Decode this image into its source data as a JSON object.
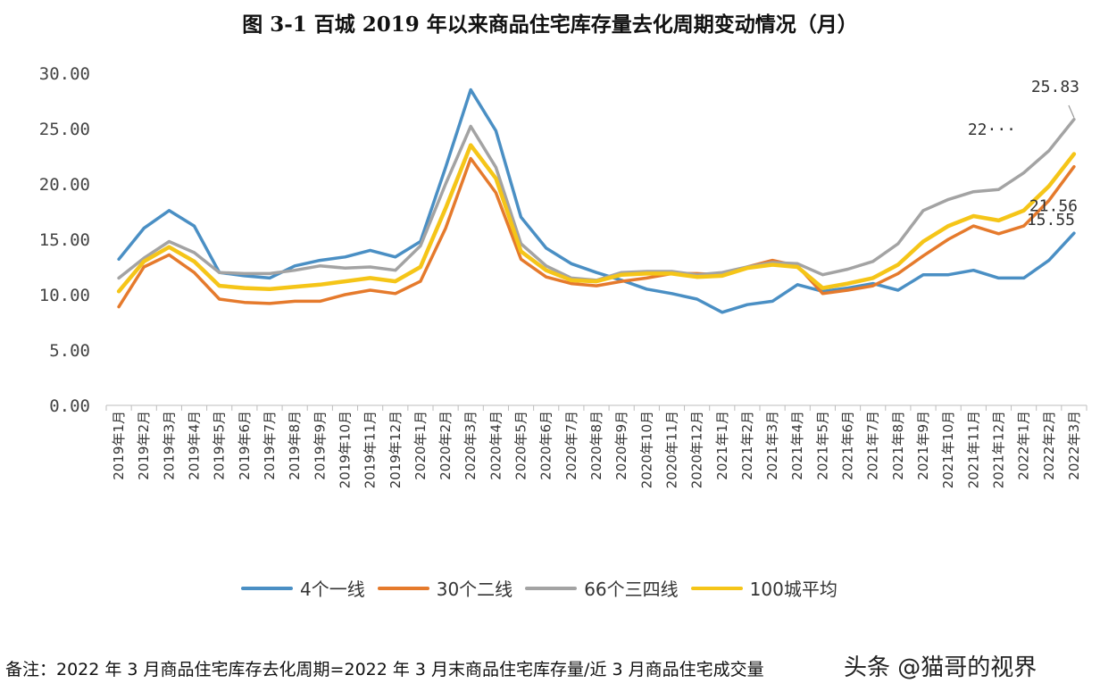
{
  "chart_data": {
    "type": "line",
    "title": "图 3-1  百城 2019 年以来商品住宅库存量去化周期变动情况（月）",
    "ylim": [
      0,
      30
    ],
    "yticks": [
      "0.00",
      "5.00",
      "10.00",
      "15.00",
      "20.00",
      "25.00",
      "30.00"
    ],
    "ytick_values": [
      0,
      5,
      10,
      15,
      20,
      25,
      30
    ],
    "grid": false,
    "legend_position": "bottom",
    "categories": [
      "2019年1月",
      "2019年2月",
      "2019年3月",
      "2019年4月",
      "2019年5月",
      "2019年6月",
      "2019年7月",
      "2019年8月",
      "2019年9月",
      "2019年10月",
      "2019年11月",
      "2019年12月",
      "2020年1月",
      "2020年2月",
      "2020年3月",
      "2020年4月",
      "2020年5月",
      "2020年6月",
      "2020年7月",
      "2020年8月",
      "2020年9月",
      "2020年10月",
      "2020年11月",
      "2020年12月",
      "2021年1月",
      "2021年2月",
      "2021年3月",
      "2021年4月",
      "2021年5月",
      "2021年6月",
      "2021年7月",
      "2021年8月",
      "2021年9月",
      "2021年10月",
      "2021年11月",
      "2021年12月",
      "2022年1月",
      "2022年2月",
      "2022年3月"
    ],
    "series": [
      {
        "name": "4个一线",
        "color": "#4a8fc4",
        "values": [
          13.2,
          16.0,
          17.6,
          16.2,
          12.0,
          11.7,
          11.5,
          12.6,
          13.1,
          13.4,
          14.0,
          13.4,
          14.8,
          21.5,
          28.5,
          24.8,
          17.0,
          14.2,
          12.8,
          12.0,
          11.3,
          10.5,
          10.1,
          9.6,
          8.4,
          9.1,
          9.4,
          10.9,
          10.3,
          10.6,
          11.0,
          10.4,
          11.8,
          11.8,
          12.2,
          11.5,
          11.5,
          13.1,
          15.55
        ]
      },
      {
        "name": "30个二线",
        "color": "#e57a2c",
        "values": [
          8.9,
          12.5,
          13.6,
          12.0,
          9.6,
          9.3,
          9.2,
          9.4,
          9.4,
          10.0,
          10.4,
          10.1,
          11.2,
          16.0,
          22.3,
          19.2,
          13.2,
          11.6,
          11.0,
          10.8,
          11.2,
          11.5,
          11.9,
          11.9,
          11.8,
          12.5,
          13.1,
          12.6,
          10.1,
          10.4,
          10.8,
          11.9,
          13.5,
          15.0,
          16.2,
          15.5,
          16.2,
          18.5,
          21.56
        ]
      },
      {
        "name": "66个三四线",
        "color": "#a3a3a3",
        "values": [
          11.5,
          13.3,
          14.8,
          13.8,
          12.0,
          11.9,
          11.9,
          12.2,
          12.6,
          12.4,
          12.5,
          12.2,
          14.4,
          20.0,
          25.2,
          21.5,
          14.6,
          12.6,
          11.5,
          11.3,
          12.0,
          12.1,
          12.1,
          11.8,
          12.0,
          12.5,
          12.9,
          12.8,
          11.8,
          12.3,
          13.0,
          14.6,
          17.6,
          18.6,
          19.3,
          19.5,
          21.0,
          23.0,
          25.83
        ]
      },
      {
        "name": "100城平均",
        "color": "#f5c518",
        "values": [
          10.3,
          13.0,
          14.3,
          13.0,
          10.8,
          10.6,
          10.5,
          10.7,
          10.9,
          11.2,
          11.5,
          11.2,
          12.5,
          17.8,
          23.5,
          20.5,
          13.9,
          12.2,
          11.3,
          11.2,
          11.8,
          11.9,
          11.9,
          11.6,
          11.7,
          12.4,
          12.7,
          12.5,
          10.6,
          11.0,
          11.5,
          12.7,
          14.8,
          16.2,
          17.1,
          16.7,
          17.6,
          19.8,
          22.7
        ]
      }
    ],
    "annotations": [
      "25.83",
      "22···",
      "21.56",
      "15.55"
    ]
  },
  "footnote": "备注：2022 年 3 月商品住宅库存去化周期=2022 年 3 月末商品住宅库存量/近 3 月商品住宅成交量",
  "watermark": "头条 @猫哥的视界"
}
